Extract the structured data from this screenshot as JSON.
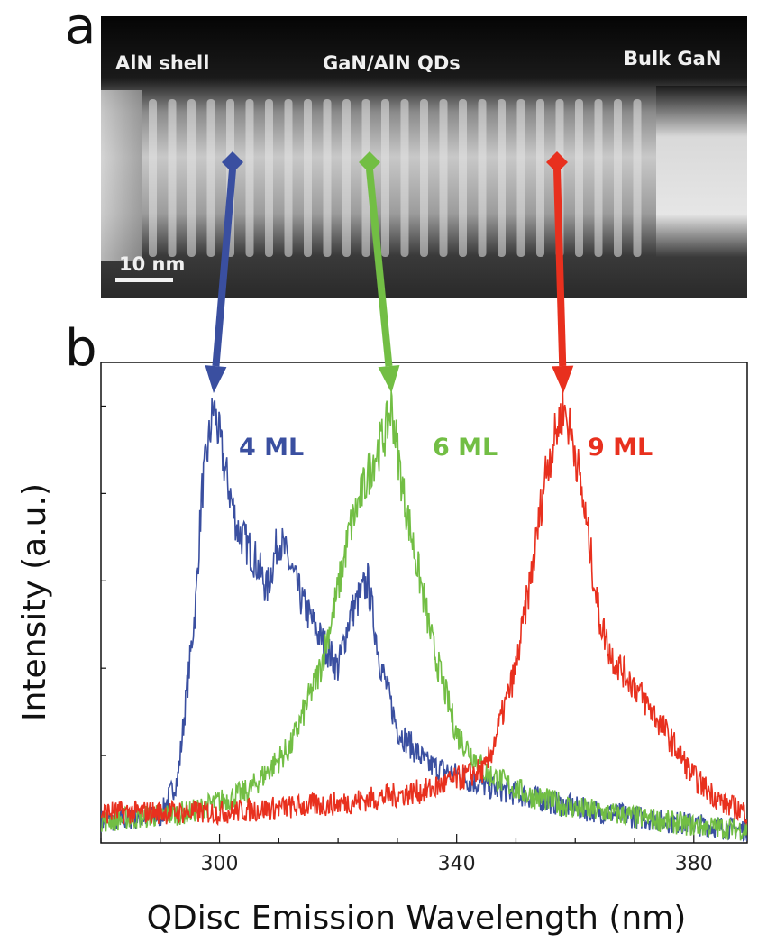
{
  "panel_a": {
    "letter": "a",
    "labels": {
      "shell": "AlN shell",
      "qds": "GaN/AlN QDs",
      "bulk": "Bulk GaN"
    },
    "scale_bar": "10 nm"
  },
  "panel_b": {
    "letter": "b"
  },
  "chart_data": {
    "type": "line",
    "title": "",
    "xlabel": "QDisc Emission Wavelength (nm)",
    "ylabel": "Intensity (a.u.)",
    "xlim": [
      280,
      389
    ],
    "ylim": [
      0,
      1.1
    ],
    "x_ticks": [
      300,
      340,
      380
    ],
    "x_tick_labels": [
      "300",
      "340",
      "380"
    ],
    "y_tick_labels_shown": false,
    "grid": false,
    "legend": "none",
    "series": [
      {
        "name": "4 ML",
        "color": "#3a4fa0",
        "peak_x": 299,
        "x": [
          280,
          290,
          293,
          296,
          297,
          299,
          301,
          303,
          306,
          308,
          310,
          312,
          314,
          317,
          320,
          322,
          325,
          327,
          330,
          335,
          345,
          360,
          375,
          389
        ],
        "y": [
          0.05,
          0.06,
          0.15,
          0.55,
          0.8,
          1.0,
          0.85,
          0.72,
          0.65,
          0.58,
          0.7,
          0.63,
          0.55,
          0.47,
          0.4,
          0.52,
          0.6,
          0.42,
          0.26,
          0.18,
          0.13,
          0.08,
          0.05,
          0.03
        ]
      },
      {
        "name": "6 ML",
        "color": "#72be44",
        "peak_x": 329,
        "x": [
          280,
          295,
          305,
          312,
          317,
          320,
          322,
          324,
          326,
          328,
          329,
          331,
          333,
          336,
          340,
          345,
          352,
          360,
          370,
          380,
          389
        ],
        "y": [
          0.05,
          0.07,
          0.12,
          0.22,
          0.4,
          0.58,
          0.72,
          0.8,
          0.88,
          0.94,
          1.0,
          0.8,
          0.66,
          0.45,
          0.25,
          0.16,
          0.11,
          0.08,
          0.06,
          0.04,
          0.03
        ]
      },
      {
        "name": "9 ML",
        "color": "#e8301e",
        "peak_x": 358,
        "x": [
          280,
          300,
          320,
          335,
          345,
          350,
          353,
          355,
          357,
          358,
          360,
          362,
          364,
          366,
          370,
          375,
          380,
          385,
          389
        ],
        "y": [
          0.07,
          0.07,
          0.09,
          0.12,
          0.17,
          0.4,
          0.65,
          0.85,
          0.95,
          1.0,
          0.9,
          0.72,
          0.52,
          0.43,
          0.36,
          0.26,
          0.15,
          0.09,
          0.07
        ]
      }
    ]
  }
}
